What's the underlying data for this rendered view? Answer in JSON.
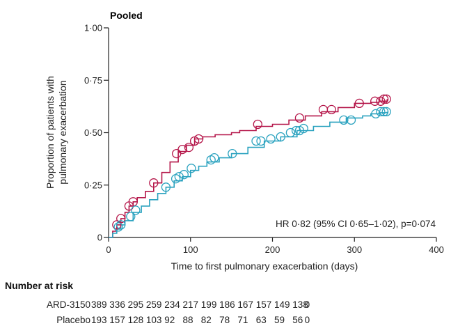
{
  "chart_data": {
    "type": "line",
    "title": "Pooled",
    "xlabel": "Time to first pulmonary exacerbation (days)",
    "ylabel_lines": [
      "Proportion of patients with",
      "pulmonary exacerbation"
    ],
    "xlim": [
      0,
      400
    ],
    "ylim": [
      0,
      1
    ],
    "x_ticks": [
      {
        "value": 0,
        "label": "0"
      },
      {
        "value": 100,
        "label": "100"
      },
      {
        "value": 200,
        "label": "200"
      },
      {
        "value": 300,
        "label": "300"
      },
      {
        "value": 400,
        "label": "400"
      }
    ],
    "y_ticks": [
      {
        "value": 0,
        "label": "0"
      },
      {
        "value": 0.25,
        "label": "0·25"
      },
      {
        "value": 0.5,
        "label": "0·50"
      },
      {
        "value": 0.75,
        "label": "0·75"
      },
      {
        "value": 1,
        "label": "1·00"
      }
    ],
    "annotation": "HR 0·82 (95% CI 0·65–1·02), p=0·074",
    "series": [
      {
        "color": "#b5174a",
        "steps": [
          [
            0,
            0
          ],
          [
            5,
            0.03
          ],
          [
            10,
            0.06
          ],
          [
            15,
            0.09
          ],
          [
            20,
            0.12
          ],
          [
            25,
            0.15
          ],
          [
            30,
            0.17
          ],
          [
            35,
            0.19
          ],
          [
            45,
            0.22
          ],
          [
            55,
            0.26
          ],
          [
            65,
            0.31
          ],
          [
            75,
            0.36
          ],
          [
            85,
            0.41
          ],
          [
            95,
            0.44
          ],
          [
            105,
            0.47
          ],
          [
            115,
            0.48
          ],
          [
            130,
            0.49
          ],
          [
            150,
            0.5
          ],
          [
            160,
            0.51
          ],
          [
            180,
            0.53
          ],
          [
            200,
            0.54
          ],
          [
            220,
            0.56
          ],
          [
            240,
            0.58
          ],
          [
            260,
            0.6
          ],
          [
            280,
            0.62
          ],
          [
            300,
            0.64
          ],
          [
            320,
            0.645
          ],
          [
            330,
            0.65
          ],
          [
            340,
            0.66
          ]
        ],
        "censored": [
          [
            10,
            0.06
          ],
          [
            15,
            0.09
          ],
          [
            25,
            0.15
          ],
          [
            30,
            0.17
          ],
          [
            55,
            0.26
          ],
          [
            83,
            0.4
          ],
          [
            90,
            0.42
          ],
          [
            98,
            0.43
          ],
          [
            105,
            0.46
          ],
          [
            110,
            0.47
          ],
          [
            182,
            0.54
          ],
          [
            233,
            0.57
          ],
          [
            262,
            0.61
          ],
          [
            272,
            0.61
          ],
          [
            306,
            0.64
          ],
          [
            325,
            0.65
          ],
          [
            332,
            0.65
          ],
          [
            336,
            0.66
          ],
          [
            339,
            0.66
          ]
        ]
      },
      {
        "color": "#2aa2bf",
        "steps": [
          [
            0,
            0
          ],
          [
            5,
            0.02
          ],
          [
            10,
            0.04
          ],
          [
            15,
            0.06
          ],
          [
            20,
            0.08
          ],
          [
            30,
            0.12
          ],
          [
            40,
            0.15
          ],
          [
            50,
            0.18
          ],
          [
            60,
            0.21
          ],
          [
            70,
            0.24
          ],
          [
            80,
            0.27
          ],
          [
            90,
            0.29
          ],
          [
            100,
            0.32
          ],
          [
            110,
            0.34
          ],
          [
            120,
            0.36
          ],
          [
            135,
            0.38
          ],
          [
            150,
            0.4
          ],
          [
            170,
            0.43
          ],
          [
            190,
            0.46
          ],
          [
            210,
            0.48
          ],
          [
            230,
            0.51
          ],
          [
            250,
            0.53
          ],
          [
            270,
            0.55
          ],
          [
            290,
            0.57
          ],
          [
            310,
            0.58
          ],
          [
            320,
            0.59
          ],
          [
            330,
            0.595
          ],
          [
            340,
            0.6
          ]
        ],
        "censored": [
          [
            12,
            0.05
          ],
          [
            15,
            0.06
          ],
          [
            27,
            0.1
          ],
          [
            33,
            0.13
          ],
          [
            70,
            0.24
          ],
          [
            82,
            0.28
          ],
          [
            86,
            0.29
          ],
          [
            92,
            0.3
          ],
          [
            101,
            0.33
          ],
          [
            125,
            0.37
          ],
          [
            129,
            0.38
          ],
          [
            151,
            0.4
          ],
          [
            180,
            0.46
          ],
          [
            186,
            0.46
          ],
          [
            198,
            0.47
          ],
          [
            210,
            0.48
          ],
          [
            222,
            0.5
          ],
          [
            229,
            0.51
          ],
          [
            233,
            0.51
          ],
          [
            238,
            0.52
          ],
          [
            287,
            0.56
          ],
          [
            296,
            0.56
          ],
          [
            326,
            0.59
          ],
          [
            332,
            0.6
          ],
          [
            336,
            0.6
          ],
          [
            339,
            0.6
          ]
        ]
      }
    ]
  },
  "risk_table": {
    "heading": "Number at risk",
    "rows": [
      {
        "label": "ARD-3150",
        "counts": [
          "389",
          "336",
          "295",
          "259",
          "234",
          "217",
          "199",
          "186",
          "167",
          "157",
          "149",
          "138",
          "0"
        ]
      },
      {
        "label": "Placebo",
        "counts": [
          "193",
          "157",
          "128",
          "103",
          "92",
          "88",
          "82",
          "78",
          "71",
          "63",
          "59",
          "56",
          "0"
        ]
      }
    ]
  }
}
